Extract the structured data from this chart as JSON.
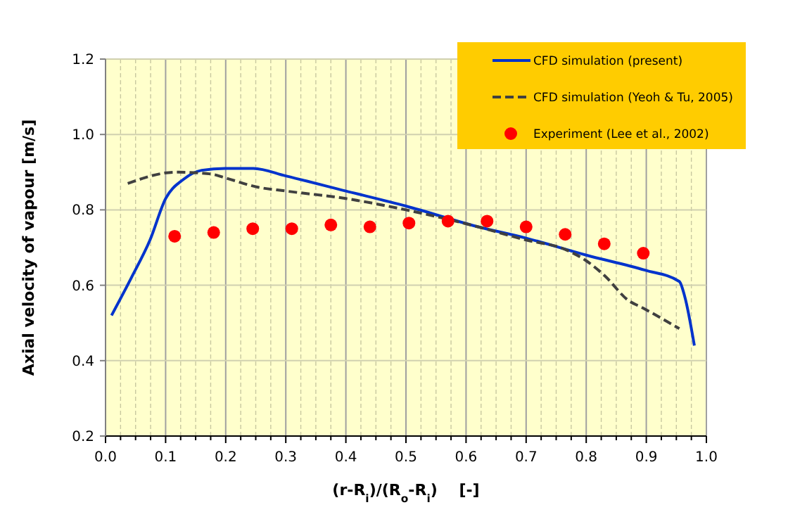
{
  "chart_data": {
    "type": "line",
    "xlabel": "(r-R$_{i}$)/(R$_{o}$-R$_{i}$)    [-]",
    "ylabel": "Axial velocity of vapour [m/s]",
    "xlim": [
      0,
      1
    ],
    "ylim": [
      0.2,
      1.2
    ],
    "xticks": [
      {
        "value": 0,
        "label": "0.0"
      },
      {
        "value": 0.025,
        "label": null
      },
      {
        "value": 0.05,
        "label": null
      },
      {
        "value": 0.075,
        "label": null
      },
      0.1,
      {
        "value": 0.125,
        "label": null
      },
      {
        "value": 0.15,
        "label": null
      },
      {
        "value": 0.175,
        "label": null
      },
      0.2,
      {
        "value": 0.225,
        "label": null
      },
      {
        "value": 0.25,
        "label": null
      },
      {
        "value": 0.275,
        "label": null
      },
      0.3,
      {
        "value": 0.325,
        "label": null
      },
      {
        "value": 0.35,
        "label": null
      },
      {
        "value": 0.375,
        "label": null
      },
      0.4,
      {
        "value": 0.425,
        "label": null
      },
      {
        "value": 0.45,
        "label": null
      },
      {
        "value": 0.475,
        "label": null
      },
      0.5,
      {
        "value": 0.525,
        "label": null
      },
      {
        "value": 0.55,
        "label": null
      },
      {
        "value": 0.575,
        "label": null
      },
      0.6,
      {
        "value": 0.625,
        "label": null
      },
      {
        "value": 0.65,
        "label": null
      },
      {
        "value": 0.675,
        "label": null
      },
      0.7,
      {
        "value": 0.725,
        "label": null
      },
      {
        "value": 0.75,
        "label": null
      },
      {
        "value": 0.775,
        "label": null
      },
      0.8,
      {
        "value": 0.825,
        "label": null
      },
      {
        "value": 0.85,
        "label": null
      },
      {
        "value": 0.875,
        "label": null
      },
      0.9,
      {
        "value": 0.925,
        "label": null
      },
      {
        "value": 0.95,
        "label": null
      },
      {
        "value": 0.975,
        "label": null
      },
      {
        "value": 1,
        "label": "1.0"
      }
    ],
    "yticks": [
      0.2,
      0.4,
      0.6,
      0.8,
      {
        "value": 1,
        "label": "1.0"
      },
      1.2
    ],
    "grid": true,
    "legend": "top right",
    "series": [
      {
        "name": "CFD simulation (present)",
        "color": "#0033cc",
        "line_style": "solid",
        "x": [
          0.01,
          0.043,
          0.074,
          0.1,
          0.129,
          0.16,
          0.199,
          0.246,
          0.3,
          0.4,
          0.5,
          0.62,
          0.7,
          0.8,
          0.898,
          0.955,
          0.964,
          0.98
        ],
        "values": [
          0.52,
          0.62,
          0.72,
          0.83,
          0.88,
          0.905,
          0.91,
          0.91,
          0.89,
          0.85,
          0.81,
          0.755,
          0.725,
          0.68,
          0.64,
          0.61,
          0.57,
          0.44
        ]
      },
      {
        "name": "CFD simulation (Yeoh & Tu, 2005)",
        "color": "#404040",
        "line_style": "dashed",
        "x": [
          0.037,
          0.117,
          0.176,
          0.199,
          0.254,
          0.3,
          0.4,
          0.5,
          0.62,
          0.7,
          0.765,
          0.8,
          0.831,
          0.87,
          0.894,
          0.955
        ],
        "values": [
          0.87,
          0.9,
          0.895,
          0.885,
          0.86,
          0.85,
          0.83,
          0.8,
          0.755,
          0.72,
          0.695,
          0.665,
          0.625,
          0.56,
          0.54,
          0.485
        ]
      },
      {
        "name": "Experiment (Lee et al., 2002)",
        "color": "#ff0000",
        "type": "scatter",
        "marker": "circle",
        "x": [
          0.115,
          0.18,
          0.245,
          0.31,
          0.375,
          0.44,
          0.505,
          0.57,
          0.635,
          0.7,
          0.765,
          0.83,
          0.895
        ],
        "values": [
          0.73,
          0.74,
          0.75,
          0.75,
          0.76,
          0.755,
          0.765,
          0.77,
          0.77,
          0.755,
          0.735,
          0.71,
          0.685
        ]
      }
    ]
  }
}
